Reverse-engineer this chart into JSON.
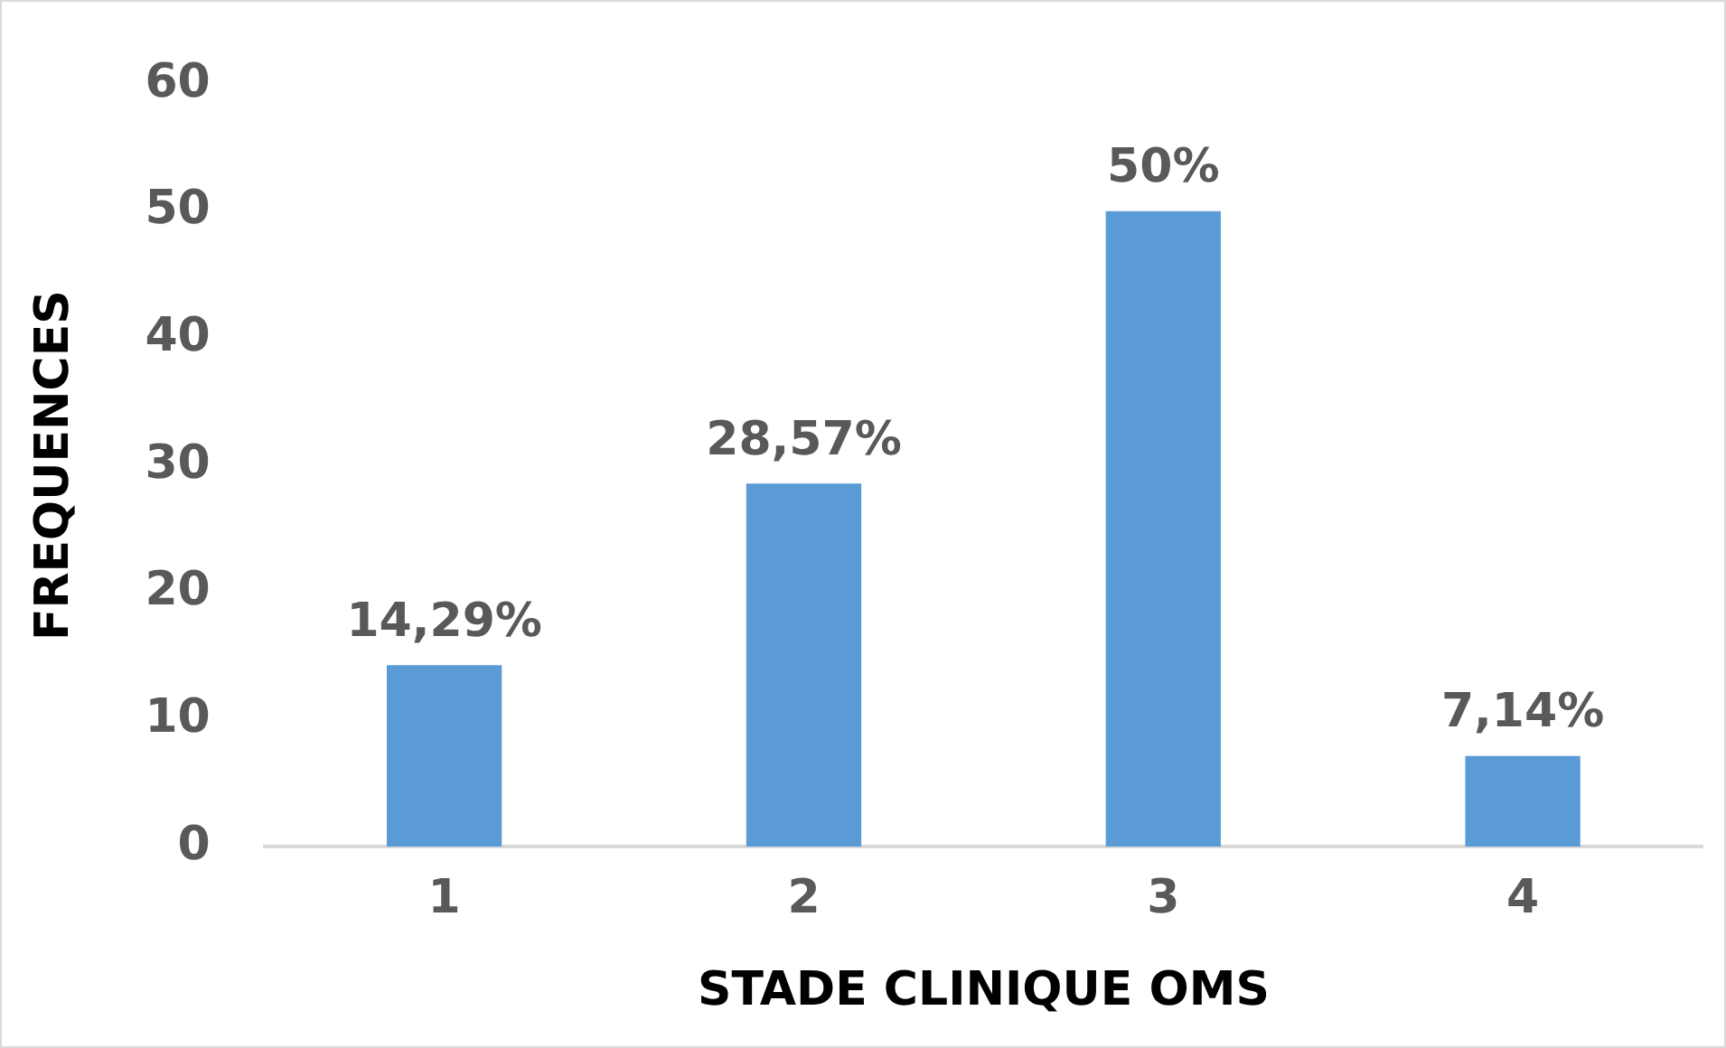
{
  "chart_data": {
    "type": "bar",
    "xlabel": "STADE CLINIQUE OMS",
    "ylabel": "FREQUENCES",
    "categories": [
      "1",
      "2",
      "3",
      "4"
    ],
    "values": [
      14.29,
      28.57,
      50,
      7.14
    ],
    "value_labels": [
      "14,29%",
      "28,57%",
      "50%",
      "7,14%"
    ],
    "color": "#5b9bd5",
    "ylim": [
      0,
      60
    ],
    "yticks": [
      0,
      10,
      20,
      30,
      40,
      50,
      60
    ],
    "grid": false,
    "legend": false
  }
}
